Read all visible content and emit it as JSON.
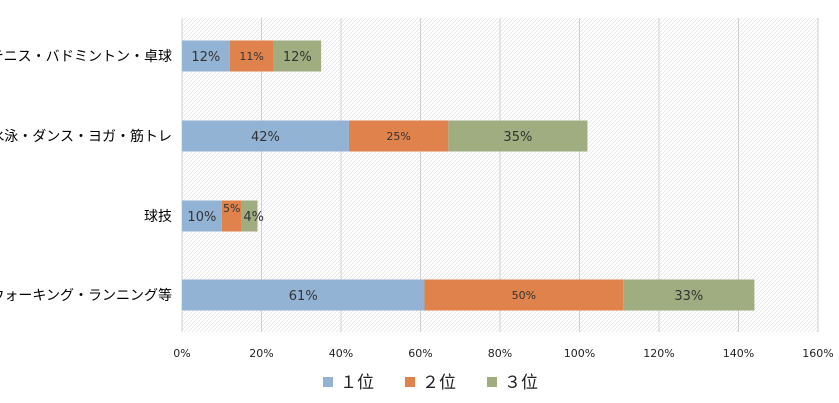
{
  "chart_data": {
    "type": "bar",
    "orientation": "horizontal",
    "stacked": true,
    "categories": [
      "テニス・バドミントン・卓球",
      "水泳・ダンス・ヨガ・筋トレ",
      "球技",
      "ウォーキング・ランニング等"
    ],
    "series": [
      {
        "name": "１位",
        "color": "#93b3d5",
        "values": [
          12,
          42,
          10,
          61
        ],
        "labels": [
          "12%",
          "42%",
          "10%",
          "61%"
        ]
      },
      {
        "name": "２位",
        "color": "#e0824b",
        "values": [
          11,
          25,
          5,
          50
        ],
        "labels": [
          "11%",
          "25%",
          "5%",
          "50%"
        ]
      },
      {
        "name": "３位",
        "color": "#9fad80",
        "values": [
          12,
          35,
          4,
          33
        ],
        "labels": [
          "12%",
          "35%",
          "4%",
          "33%"
        ]
      }
    ],
    "xlim": [
      0,
      160
    ],
    "xticks": [
      "0%",
      "20%",
      "40%",
      "60%",
      "80%",
      "100%",
      "120%",
      "140%",
      "160%"
    ],
    "grid": true,
    "legend_position": "bottom"
  }
}
